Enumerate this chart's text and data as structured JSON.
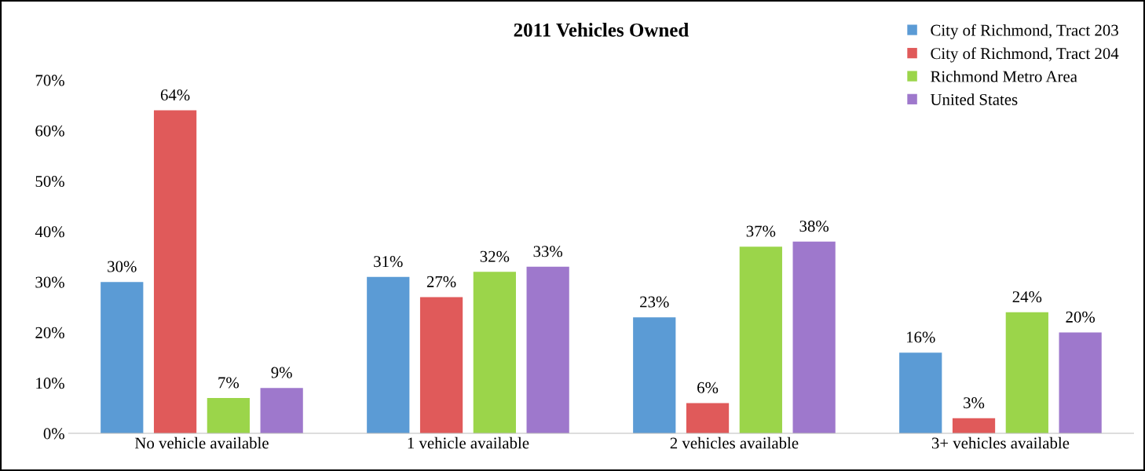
{
  "chart_data": {
    "type": "bar",
    "title": "2011 Vehicles Owned",
    "categories": [
      "No vehicle available",
      "1 vehicle available",
      "2 vehicles available",
      "3+ vehicles available"
    ],
    "series": [
      {
        "name": "City of Richmond, Tract 203",
        "color": "#5b9bd5",
        "values": [
          30,
          31,
          23,
          16
        ],
        "value_labels": [
          "30%",
          "31%",
          "23%",
          "16%"
        ]
      },
      {
        "name": "City of Richmond, Tract 204",
        "color": "#e05a5a",
        "values": [
          64,
          27,
          6,
          3
        ],
        "value_labels": [
          "64%",
          "27%",
          "6%",
          "3%"
        ]
      },
      {
        "name": "Richmond Metro Area",
        "color": "#9bd54a",
        "values": [
          7,
          32,
          37,
          24
        ],
        "value_labels": [
          "7%",
          "32%",
          "37%",
          "24%"
        ]
      },
      {
        "name": "United States",
        "color": "#9e78cc",
        "values": [
          9,
          33,
          38,
          20
        ],
        "value_labels": [
          "9%",
          "33%",
          "38%",
          "20%"
        ]
      }
    ],
    "ylim": [
      0,
      70
    ],
    "yticks": [
      {
        "value": 0,
        "label": "0%"
      },
      {
        "value": 10,
        "label": "10%"
      },
      {
        "value": 20,
        "label": "20%"
      },
      {
        "value": 30,
        "label": "30%"
      },
      {
        "value": 40,
        "label": "40%"
      },
      {
        "value": 50,
        "label": "50%"
      },
      {
        "value": 60,
        "label": "60%"
      },
      {
        "value": 70,
        "label": "70%"
      }
    ],
    "grid": false,
    "legend": "top right"
  }
}
